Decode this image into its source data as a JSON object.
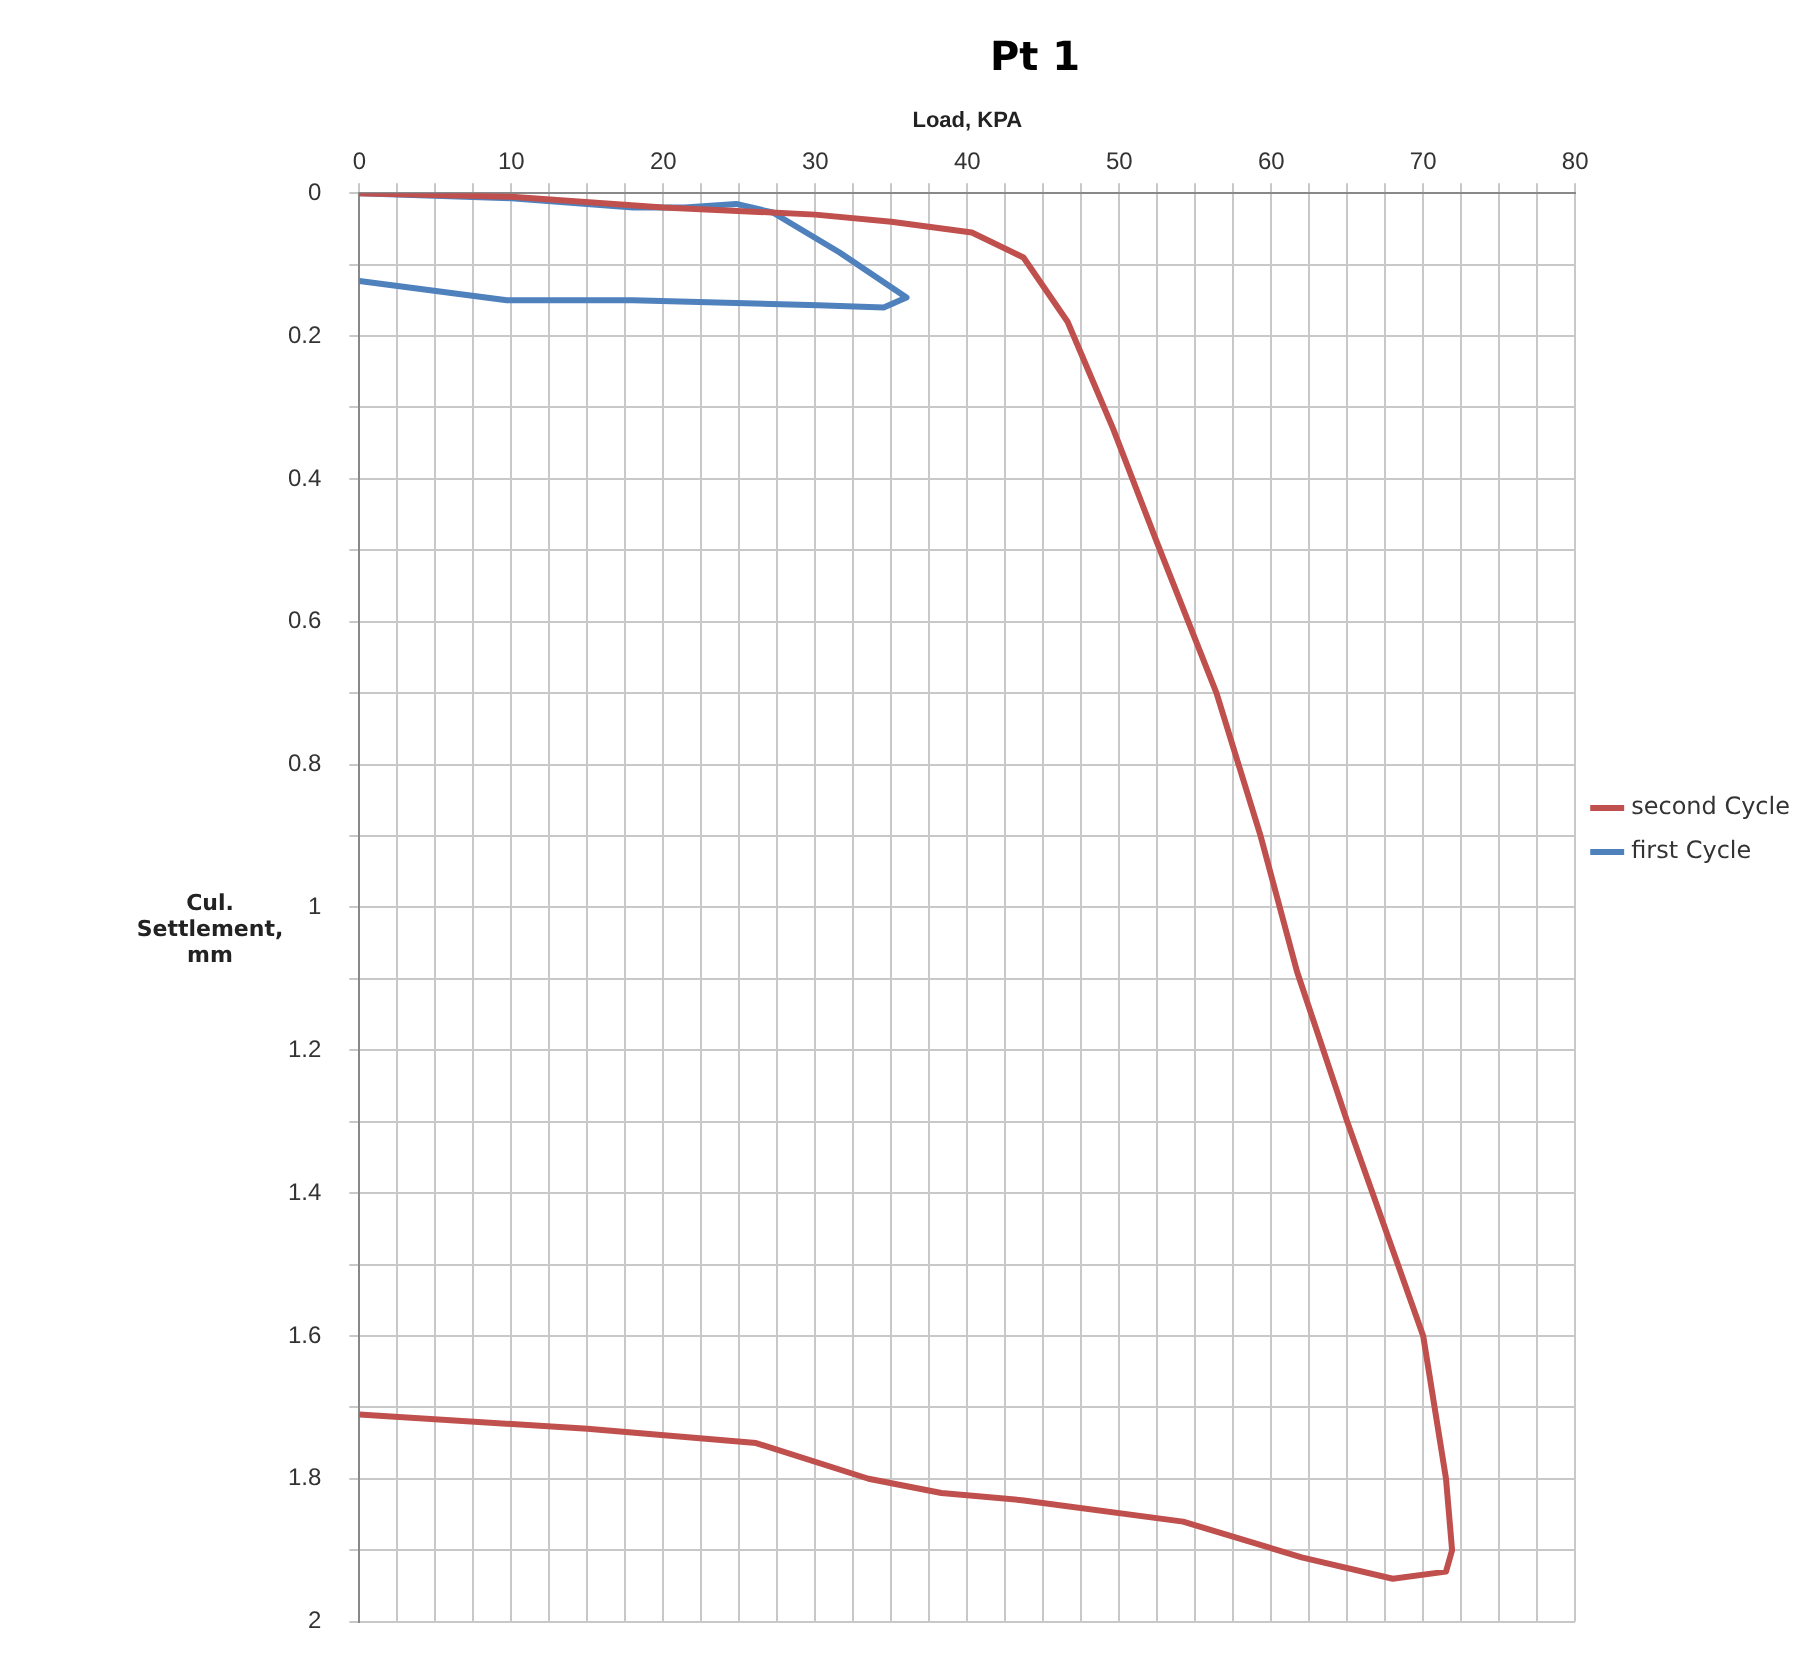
{
  "chart_data": {
    "type": "line",
    "title": "Pt 1",
    "xlabel": "Load, KPA",
    "ylabel": "Cul. Settlement, mm",
    "xlim": [
      0,
      80
    ],
    "ylim": [
      2,
      0
    ],
    "xticks": [
      0,
      {
        "value": 2.5,
        "label": null
      },
      {
        "value": 5,
        "label": null
      },
      {
        "value": 7.5,
        "label": null
      },
      10,
      {
        "value": 12.5,
        "label": null
      },
      {
        "value": 15,
        "label": null
      },
      {
        "value": 17.5,
        "label": null
      },
      20,
      {
        "value": 22.5,
        "label": null
      },
      {
        "value": 25,
        "label": null
      },
      {
        "value": 27.5,
        "label": null
      },
      30,
      {
        "value": 32.5,
        "label": null
      },
      {
        "value": 35,
        "label": null
      },
      {
        "value": 37.5,
        "label": null
      },
      40,
      {
        "value": 42.5,
        "label": null
      },
      {
        "value": 45,
        "label": null
      },
      {
        "value": 47.5,
        "label": null
      },
      50,
      {
        "value": 52.5,
        "label": null
      },
      {
        "value": 55,
        "label": null
      },
      {
        "value": 57.5,
        "label": null
      },
      60,
      {
        "value": 62.5,
        "label": null
      },
      {
        "value": 65,
        "label": null
      },
      {
        "value": 67.5,
        "label": null
      },
      70,
      {
        "value": 72.5,
        "label": null
      },
      {
        "value": 75,
        "label": null
      },
      {
        "value": 77.5,
        "label": null
      },
      80
    ],
    "yticks": [
      0,
      {
        "value": 0.1,
        "label": null
      },
      0.2,
      {
        "value": 0.3,
        "label": null
      },
      0.4,
      {
        "value": 0.5,
        "label": null
      },
      0.6,
      {
        "value": 0.7,
        "label": null
      },
      0.8,
      {
        "value": 0.9,
        "label": null
      },
      1,
      {
        "value": 1.1,
        "label": null
      },
      1.2,
      {
        "value": 1.3,
        "label": null
      },
      1.4,
      {
        "value": 1.5,
        "label": null
      },
      1.6,
      {
        "value": 1.7,
        "label": null
      },
      1.8,
      {
        "value": 1.9,
        "label": null
      },
      2
    ],
    "grid": true,
    "legend": "right",
    "marker": "none",
    "line_style": "solid",
    "series": [
      {
        "name": "second Cycle",
        "color": "#c0504d",
        "x": [
          0,
          10,
          20,
          30,
          35,
          40.3,
          43.7,
          46.6,
          49.6,
          52.5,
          56.4,
          59.3,
          61.7,
          65,
          70,
          71.5,
          71.9,
          71.5,
          68,
          62,
          54.2,
          43.6,
          38.3,
          33.5,
          26.1,
          15,
          0
        ],
        "values": [
          0,
          0.005,
          0.02,
          0.03,
          0.04,
          0.055,
          0.09,
          0.18,
          0.33,
          0.49,
          0.7,
          0.9,
          1.09,
          1.3,
          1.6,
          1.8,
          1.9,
          1.93,
          1.94,
          1.91,
          1.86,
          1.83,
          1.82,
          1.8,
          1.75,
          1.73,
          1.71
        ]
      },
      {
        "name": "first Cycle",
        "color": "#4f81bd",
        "x": [
          0,
          10,
          18,
          21.4,
          24.8,
          27.2,
          31.6,
          36,
          34.5,
          30.2,
          18,
          9.7,
          0
        ],
        "values": [
          0,
          0.007,
          0.02,
          0.02,
          0.015,
          0.027,
          0.083,
          0.146,
          0.16,
          0.157,
          0.15,
          0.15,
          0.123
        ]
      }
    ]
  }
}
